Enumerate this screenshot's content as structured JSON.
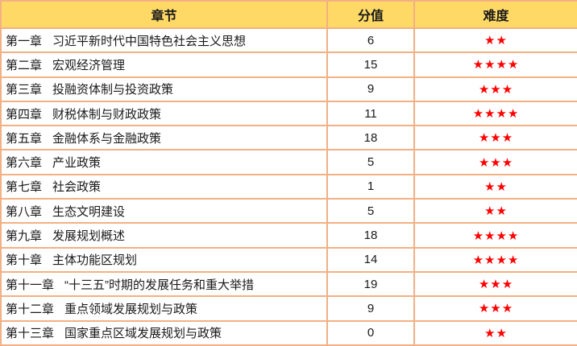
{
  "table": {
    "headers": [
      {
        "label": "章节"
      },
      {
        "label": "分值"
      },
      {
        "label": "难度"
      }
    ],
    "rows": [
      {
        "chapter": "第一章",
        "title": "习近平新时代中国特色社会主义思想",
        "score": "6",
        "stars": "★★"
      },
      {
        "chapter": "第二章",
        "title": "宏观经济管理",
        "score": "15",
        "stars": "★★★★"
      },
      {
        "chapter": "第三章",
        "title": "投融资体制与投资政策",
        "score": "9",
        "stars": "★★★"
      },
      {
        "chapter": "第四章",
        "title": "财税体制与财政政策",
        "score": "11",
        "stars": "★★★★"
      },
      {
        "chapter": "第五章",
        "title": "金融体系与金融政策",
        "score": "18",
        "stars": "★★★"
      },
      {
        "chapter": "第六章",
        "title": "产业政策",
        "score": "5",
        "stars": "★★★"
      },
      {
        "chapter": "第七章",
        "title": "社会政策",
        "score": "1",
        "stars": "★★"
      },
      {
        "chapter": "第八章",
        "title": "生态文明建设",
        "score": "5",
        "stars": "★★"
      },
      {
        "chapter": "第九章",
        "title": "发展规划概述",
        "score": "18",
        "stars": "★★★★"
      },
      {
        "chapter": "第十章",
        "title": "主体功能区规划",
        "score": "14",
        "stars": "★★★★"
      },
      {
        "chapter": "第十一章",
        "title": "“十三五”时期的发展任务和重大举措",
        "score": "19",
        "stars": "★★★"
      },
      {
        "chapter": "第十二章",
        "title": "重点领域发展规划与政策",
        "score": "9",
        "stars": "★★★"
      },
      {
        "chapter": "第十三章",
        "title": "国家重点区域发展规划与政策",
        "score": "0",
        "stars": "★★"
      }
    ]
  },
  "chart_data": {
    "type": "table",
    "title": "",
    "columns": [
      "章节",
      "分值",
      "难度"
    ],
    "rows": [
      [
        "第一章 习近平新时代中国特色社会主义思想",
        6,
        2
      ],
      [
        "第二章 宏观经济管理",
        15,
        4
      ],
      [
        "第三章 投融资体制与投资政策",
        9,
        3
      ],
      [
        "第四章 财税体制与财政政策",
        11,
        4
      ],
      [
        "第五章 金融体系与金融政策",
        18,
        3
      ],
      [
        "第六章 产业政策",
        5,
        3
      ],
      [
        "第七章 社会政策",
        1,
        2
      ],
      [
        "第八章 生态文明建设",
        5,
        2
      ],
      [
        "第九章 发展规划概述",
        18,
        4
      ],
      [
        "第十章 主体功能区规划",
        14,
        4
      ],
      [
        "第十一章 “十三五”时期的发展任务和重大举措",
        19,
        3
      ],
      [
        "第十二章 重点领域发展规划与政策",
        9,
        3
      ],
      [
        "第十三章 国家重点区域发展规划与政策",
        0,
        2
      ]
    ],
    "notes": "难度 column shown as red star glyphs (count = difficulty value)"
  },
  "colors": {
    "header_bg": "#FFD966",
    "border": "#F2B084",
    "star_red": "#FF0000",
    "text": "#1A1A1A",
    "row_bg": "#FFFFFF"
  }
}
